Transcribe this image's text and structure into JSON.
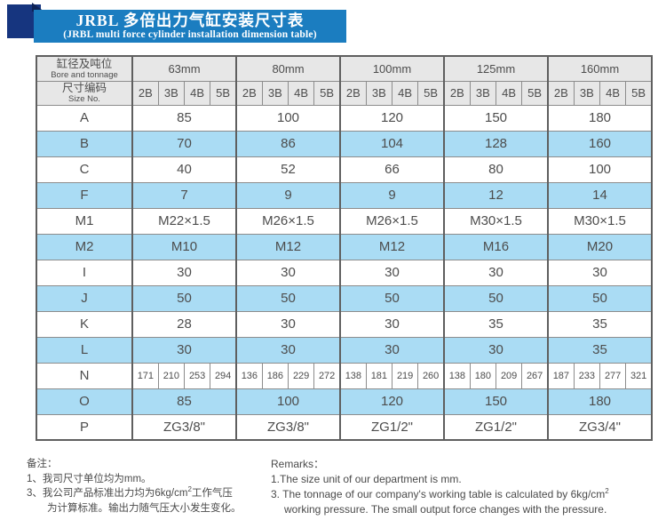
{
  "header": {
    "title_cn": "JRBL 多倍出力气缸安装尺寸表",
    "title_en": "(JRBL multi force cylinder installation dimension table)",
    "banner_color": "#1b7dc0",
    "ribbon_color": "#16357f"
  },
  "table": {
    "corner_row1": {
      "cn": "缸径及吨位",
      "en": "Bore and tonnage"
    },
    "corner_row2": {
      "cn": "尺寸编码",
      "en": "Size No."
    },
    "groups": [
      "63mm",
      "80mm",
      "100mm",
      "125mm",
      "160mm"
    ],
    "size_codes": [
      "2B",
      "3B",
      "4B",
      "5B"
    ],
    "rows": [
      {
        "label": "A",
        "values": [
          "85",
          "100",
          "120",
          "150",
          "180"
        ]
      },
      {
        "label": "B",
        "values": [
          "70",
          "86",
          "104",
          "128",
          "160"
        ]
      },
      {
        "label": "C",
        "values": [
          "40",
          "52",
          "66",
          "80",
          "100"
        ]
      },
      {
        "label": "F",
        "values": [
          "7",
          "9",
          "9",
          "12",
          "14"
        ]
      },
      {
        "label": "M1",
        "values": [
          "M22×1.5",
          "M26×1.5",
          "M26×1.5",
          "M30×1.5",
          "M30×1.5"
        ]
      },
      {
        "label": "M2",
        "values": [
          "M10",
          "M12",
          "M12",
          "M16",
          "M20"
        ]
      },
      {
        "label": "I",
        "values": [
          "30",
          "30",
          "30",
          "30",
          "30"
        ]
      },
      {
        "label": "J",
        "values": [
          "50",
          "50",
          "50",
          "50",
          "50"
        ]
      },
      {
        "label": "K",
        "values": [
          "28",
          "30",
          "30",
          "35",
          "35"
        ]
      },
      {
        "label": "L",
        "values": [
          "30",
          "30",
          "30",
          "30",
          "35"
        ]
      },
      {
        "label": "N",
        "values": [
          "171",
          "210",
          "253",
          "294",
          "136",
          "186",
          "229",
          "272",
          "138",
          "181",
          "219",
          "260",
          "138",
          "180",
          "209",
          "267",
          "187",
          "233",
          "277",
          "321"
        ]
      },
      {
        "label": "O",
        "values": [
          "85",
          "100",
          "120",
          "150",
          "180"
        ]
      },
      {
        "label": "P",
        "values": [
          "ZG3/8\"",
          "ZG3/8\"",
          "ZG1/2\"",
          "ZG1/2\"",
          "ZG3/4\""
        ]
      }
    ],
    "colors": {
      "shaded_row": "#aadcf4",
      "header_bg": "#e7e7e7"
    }
  },
  "notes_cn": {
    "heading": "备注：",
    "line1": "1、我司尺寸单位均为mm。",
    "line2_pre": "3、我公司产品标准出力均为6kg/cm",
    "line2_sup": "2",
    "line2_post": "工作气压",
    "line3": "为计算标准。输出力随气压大小发生变化。"
  },
  "notes_en": {
    "heading": "Remarks：",
    "line1": "1.The size unit of our department is mm.",
    "line2_pre": "3. The tonnage of our company's working table is calculated by 6kg/cm",
    "line2_sup": "2",
    "line3": "working pressure. The small output force changes with the pressure."
  }
}
